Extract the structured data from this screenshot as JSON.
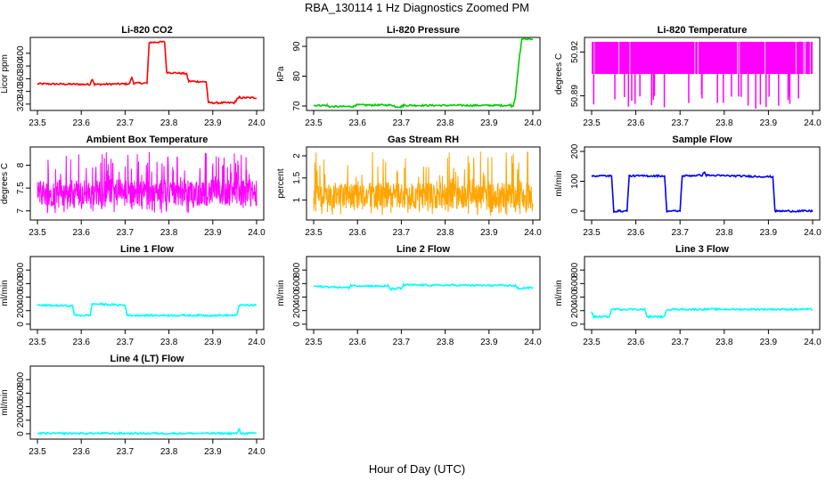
{
  "figure": {
    "title": "RBA_130114  1 Hz Diagnostics Zoomed PM",
    "xlabel": "Hour of Day (UTC)"
  },
  "chart_data": [
    {
      "type": "line",
      "title": "Li-820 CO2",
      "ylabel": "Licor ppm",
      "color": "#ff0000",
      "xlim": [
        23.5,
        24.0
      ],
      "ylim": [
        310,
        425
      ],
      "xticks": [
        "23.5",
        "23.6",
        "23.7",
        "23.8",
        "23.9",
        "24.0"
      ],
      "yticks": [
        320,
        340,
        360,
        380,
        400
      ],
      "series": [
        {
          "name": "CO2",
          "segments": [
            [
              23.5,
              352
            ],
            [
              23.62,
              351
            ],
            [
              23.625,
              360
            ],
            [
              23.63,
              351
            ],
            [
              23.71,
              352
            ],
            [
              23.715,
              362
            ],
            [
              23.72,
              353
            ],
            [
              23.75,
              353
            ],
            [
              23.755,
              417
            ],
            [
              23.79,
              418
            ],
            [
              23.795,
              370
            ],
            [
              23.84,
              368
            ],
            [
              23.845,
              356
            ],
            [
              23.885,
              355
            ],
            [
              23.89,
              322
            ],
            [
              23.95,
              322
            ],
            [
              23.955,
              328
            ],
            [
              23.96,
              330
            ],
            [
              24.0,
              330
            ]
          ]
        }
      ]
    },
    {
      "type": "line",
      "title": "Li-820 Pressure",
      "ylabel": "kPa",
      "color": "#00cc00",
      "xlim": [
        23.5,
        24.0
      ],
      "ylim": [
        68.5,
        93
      ],
      "xticks": [
        "23.5",
        "23.6",
        "23.7",
        "23.8",
        "23.9",
        "24.0"
      ],
      "yticks": [
        70,
        80,
        90
      ],
      "series": [
        {
          "name": "Pressure",
          "segments": [
            [
              23.5,
              70.2
            ],
            [
              23.53,
              70.2
            ],
            [
              23.535,
              69.8
            ],
            [
              23.59,
              69.8
            ],
            [
              23.595,
              70.3
            ],
            [
              23.68,
              70.3
            ],
            [
              23.685,
              69.8
            ],
            [
              23.7,
              69.8
            ],
            [
              23.705,
              70.2
            ],
            [
              23.95,
              70.2
            ],
            [
              23.955,
              70.0
            ],
            [
              23.96,
              73
            ],
            [
              23.965,
              80
            ],
            [
              23.97,
              87
            ],
            [
              23.975,
              92.5
            ],
            [
              24.0,
              92.5
            ]
          ]
        }
      ]
    },
    {
      "type": "line",
      "title": "Li-820 Temperature",
      "ylabel": "degrees C",
      "color": "#ff00ff",
      "xlim": [
        23.5,
        24.0
      ],
      "ylim": [
        50.88,
        50.93
      ],
      "xticks": [
        "23.5",
        "23.6",
        "23.7",
        "23.8",
        "23.9",
        "24.0"
      ],
      "yticks": [
        50.89,
        50.92
      ],
      "series": [
        {
          "name": "Temperature",
          "band": [
            50.905,
            50.927
          ],
          "dip_to": 50.881
        }
      ]
    },
    {
      "type": "line",
      "title": "Ambient Box Temperature",
      "ylabel": "degrees C",
      "color": "#ff00ff",
      "xlim": [
        23.5,
        24.0
      ],
      "ylim": [
        6.8,
        8.4
      ],
      "xticks": [
        "23.5",
        "23.6",
        "23.7",
        "23.8",
        "23.9",
        "24.0"
      ],
      "yticks": [
        7.0,
        7.5,
        8.0
      ],
      "series": [
        {
          "name": "Ambient",
          "center": 7.4,
          "noise_low": 6.95,
          "noise_high": 8.3
        }
      ]
    },
    {
      "type": "line",
      "title": "Gas Stream RH",
      "ylabel": "percent",
      "color": "#ffa500",
      "xlim": [
        23.5,
        24.0
      ],
      "ylim": [
        0.55,
        2.2
      ],
      "xticks": [
        "23.5",
        "23.6",
        "23.7",
        "23.8",
        "23.9",
        "24.0"
      ],
      "yticks": [
        1.0,
        1.5,
        2.0
      ],
      "series": [
        {
          "name": "RH",
          "center": 1.1,
          "noise_low": 0.65,
          "noise_high": 2.1
        }
      ]
    },
    {
      "type": "line",
      "title": "Sample Flow",
      "ylabel": "ml/min",
      "color": "#0000ff",
      "xlim": [
        23.5,
        24.0
      ],
      "ylim": [
        -30,
        215
      ],
      "xticks": [
        "23.5",
        "23.6",
        "23.7",
        "23.8",
        "23.9",
        "24.0"
      ],
      "yticks": [
        0,
        100,
        200
      ],
      "series": [
        {
          "name": "Sample",
          "segments": [
            [
              23.5,
              118
            ],
            [
              23.545,
              118
            ],
            [
              23.55,
              0
            ],
            [
              23.58,
              0
            ],
            [
              23.585,
              118
            ],
            [
              23.665,
              118
            ],
            [
              23.67,
              0
            ],
            [
              23.7,
              0
            ],
            [
              23.705,
              118
            ],
            [
              23.75,
              120
            ],
            [
              23.755,
              130
            ],
            [
              23.76,
              120
            ],
            [
              23.91,
              115
            ],
            [
              23.915,
              0
            ],
            [
              24.0,
              0
            ]
          ]
        }
      ]
    },
    {
      "type": "line",
      "title": "Line 1 Flow",
      "ylabel": "ml/min",
      "color": "#00ffff",
      "xlim": [
        23.5,
        24.0
      ],
      "ylim": [
        -80,
        1000
      ],
      "xticks": [
        "23.5",
        "23.6",
        "23.7",
        "23.8",
        "23.9",
        "24.0"
      ],
      "yticks": [
        0,
        200,
        400,
        600,
        800
      ],
      "series": [
        {
          "name": "Line 1",
          "segments": [
            [
              23.5,
              280
            ],
            [
              23.58,
              270
            ],
            [
              23.585,
              130
            ],
            [
              23.62,
              130
            ],
            [
              23.625,
              300
            ],
            [
              23.7,
              280
            ],
            [
              23.705,
              130
            ],
            [
              23.955,
              130
            ],
            [
              23.96,
              280
            ],
            [
              24.0,
              280
            ]
          ]
        }
      ]
    },
    {
      "type": "line",
      "title": "Line 2 Flow",
      "ylabel": "ml/min",
      "color": "#00ffff",
      "xlim": [
        23.5,
        24.0
      ],
      "ylim": [
        -80,
        1000
      ],
      "xticks": [
        "23.5",
        "23.6",
        "23.7",
        "23.8",
        "23.9",
        "24.0"
      ],
      "yticks": [
        0,
        200,
        400,
        600,
        800
      ],
      "series": [
        {
          "name": "Line 2",
          "segments": [
            [
              23.5,
              560
            ],
            [
              23.58,
              540
            ],
            [
              23.585,
              570
            ],
            [
              23.67,
              560
            ],
            [
              23.675,
              520
            ],
            [
              23.7,
              530
            ],
            [
              23.705,
              580
            ],
            [
              23.96,
              570
            ],
            [
              23.965,
              530
            ],
            [
              24.0,
              540
            ]
          ]
        }
      ]
    },
    {
      "type": "line",
      "title": "Line 3 Flow",
      "ylabel": "ml/min",
      "color": "#00ffff",
      "xlim": [
        23.5,
        24.0
      ],
      "ylim": [
        -80,
        1000
      ],
      "xticks": [
        "23.5",
        "23.6",
        "23.7",
        "23.8",
        "23.9",
        "24.0"
      ],
      "yticks": [
        0,
        200,
        400,
        600,
        800
      ],
      "series": [
        {
          "name": "Line 3",
          "segments": [
            [
              23.5,
              180
            ],
            [
              23.505,
              110
            ],
            [
              23.54,
              110
            ],
            [
              23.545,
              220
            ],
            [
              23.62,
              220
            ],
            [
              23.625,
              110
            ],
            [
              23.665,
              110
            ],
            [
              23.67,
              220
            ],
            [
              24.0,
              220
            ]
          ]
        }
      ]
    },
    {
      "type": "line",
      "title": "Line 4 (LT) Flow",
      "ylabel": "ml/min",
      "color": "#00ffff",
      "xlim": [
        23.5,
        24.0
      ],
      "ylim": [
        -80,
        1000
      ],
      "xticks": [
        "23.5",
        "23.6",
        "23.7",
        "23.8",
        "23.9",
        "24.0"
      ],
      "yticks": [
        0,
        200,
        400,
        600,
        800
      ],
      "series": [
        {
          "name": "Line 4",
          "segments": [
            [
              23.5,
              5
            ],
            [
              23.955,
              5
            ],
            [
              23.96,
              70
            ],
            [
              23.965,
              5
            ],
            [
              24.0,
              5
            ]
          ]
        }
      ]
    }
  ]
}
